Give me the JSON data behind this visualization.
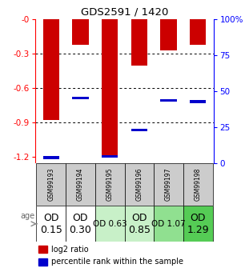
{
  "title": "GDS2591 / 1420",
  "samples": [
    "GSM99193",
    "GSM99194",
    "GSM99195",
    "GSM99196",
    "GSM99197",
    "GSM99198"
  ],
  "log2_values": [
    -0.88,
    -0.22,
    -1.18,
    -0.4,
    -0.27,
    -0.22
  ],
  "percentile_y": [
    -1.205,
    -0.685,
    -1.195,
    -0.965,
    -0.705,
    -0.715
  ],
  "age_labels": [
    "OD\n0.15",
    "OD\n0.30",
    "OD 0.63",
    "OD\n0.85",
    "OD 1.07",
    "OD\n1.29"
  ],
  "age_fontsize": [
    9,
    9,
    7.5,
    9,
    7.5,
    9
  ],
  "age_bg_colors": [
    "#ffffff",
    "#ffffff",
    "#c8f0c8",
    "#c8f0c8",
    "#90e090",
    "#55cc55"
  ],
  "bar_color": "#cc0000",
  "marker_color": "#0000cc",
  "ylim_left": [
    -1.25,
    0.0
  ],
  "yticks_left": [
    0.0,
    -0.3,
    -0.6,
    -0.9,
    -1.2
  ],
  "ytick_labels_left": [
    "-0",
    "-0.3",
    "-0.6",
    "-0.9",
    "-1.2"
  ],
  "yticks_right_vals": [
    0,
    25,
    50,
    75,
    100
  ],
  "ytick_labels_right": [
    "0",
    "25",
    "50",
    "75",
    "100%"
  ],
  "sample_bg_color": "#cccccc",
  "bar_width": 0.55
}
